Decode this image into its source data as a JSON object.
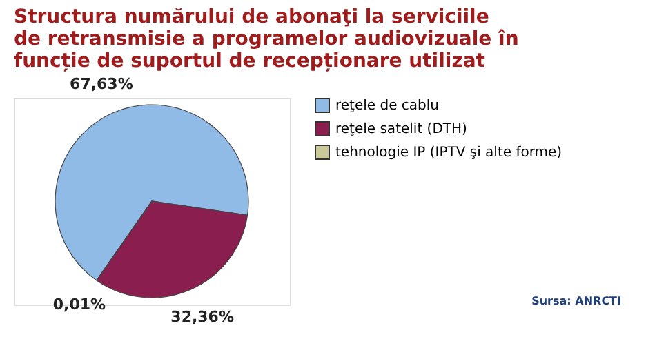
{
  "chart_data": {
    "type": "pie",
    "title": "Structura numărului de abonaţi la serviciile de retransmisie a programelor audiovizuale în funcție de suportul de recepționare utilizat",
    "categories": [
      "reţele de cablu",
      "reţele satelit (DTH)",
      "tehnologie IP (IPTV şi alte forme)"
    ],
    "values": [
      67.63,
      32.36,
      0.01
    ],
    "colors": [
      "#8fbbe6",
      "#8a1e4e",
      "#c9c99a"
    ],
    "value_labels": [
      "67,63%",
      "32,36%",
      "0,01%"
    ],
    "legend": "right",
    "annotations": [
      "Sursa: ANRCTI"
    ]
  }
}
